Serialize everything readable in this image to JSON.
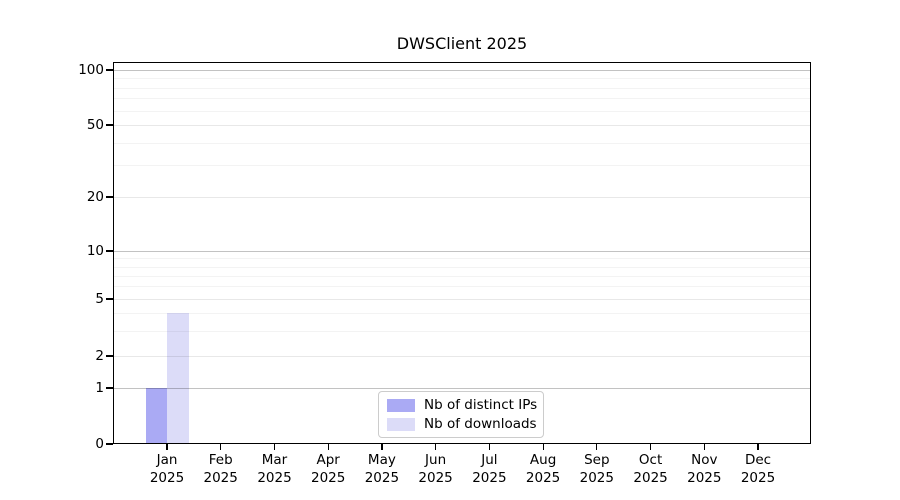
{
  "chart_data": {
    "type": "bar",
    "title": "DWSClient 2025",
    "categories": [
      "Jan\n2025",
      "Feb\n2025",
      "Mar\n2025",
      "Apr\n2025",
      "May\n2025",
      "Jun\n2025",
      "Jul\n2025",
      "Aug\n2025",
      "Sep\n2025",
      "Oct\n2025",
      "Nov\n2025",
      "Dec\n2025"
    ],
    "series": [
      {
        "name": "Nb of distinct IPs",
        "color": "#aaaaf4",
        "values": [
          1,
          0,
          0,
          0,
          0,
          0,
          0,
          0,
          0,
          0,
          0,
          0
        ]
      },
      {
        "name": "Nb of downloads",
        "color": "#dcdcf8",
        "values": [
          4,
          0,
          0,
          0,
          0,
          0,
          0,
          0,
          0,
          0,
          0,
          0
        ]
      }
    ],
    "xlabel": "",
    "ylabel": "",
    "y_major_ticks": [
      0,
      1,
      2,
      5,
      10,
      20,
      50,
      100
    ],
    "y_minor_gridlines": [
      3,
      4,
      6,
      7,
      8,
      9,
      30,
      40,
      60,
      70,
      80,
      90
    ],
    "ylim": [
      0,
      110
    ],
    "scale": "log-like with 0 baseline",
    "grid": "horizontal-only",
    "legend_position": "bottom-center"
  },
  "colors": {
    "grid_decade": "#c2c2c2",
    "grid_major": "#e8e8e8",
    "grid_minor": "#f3f3f3",
    "axis": "#000000",
    "text": "#000000",
    "legend_border": "#cccccc"
  }
}
